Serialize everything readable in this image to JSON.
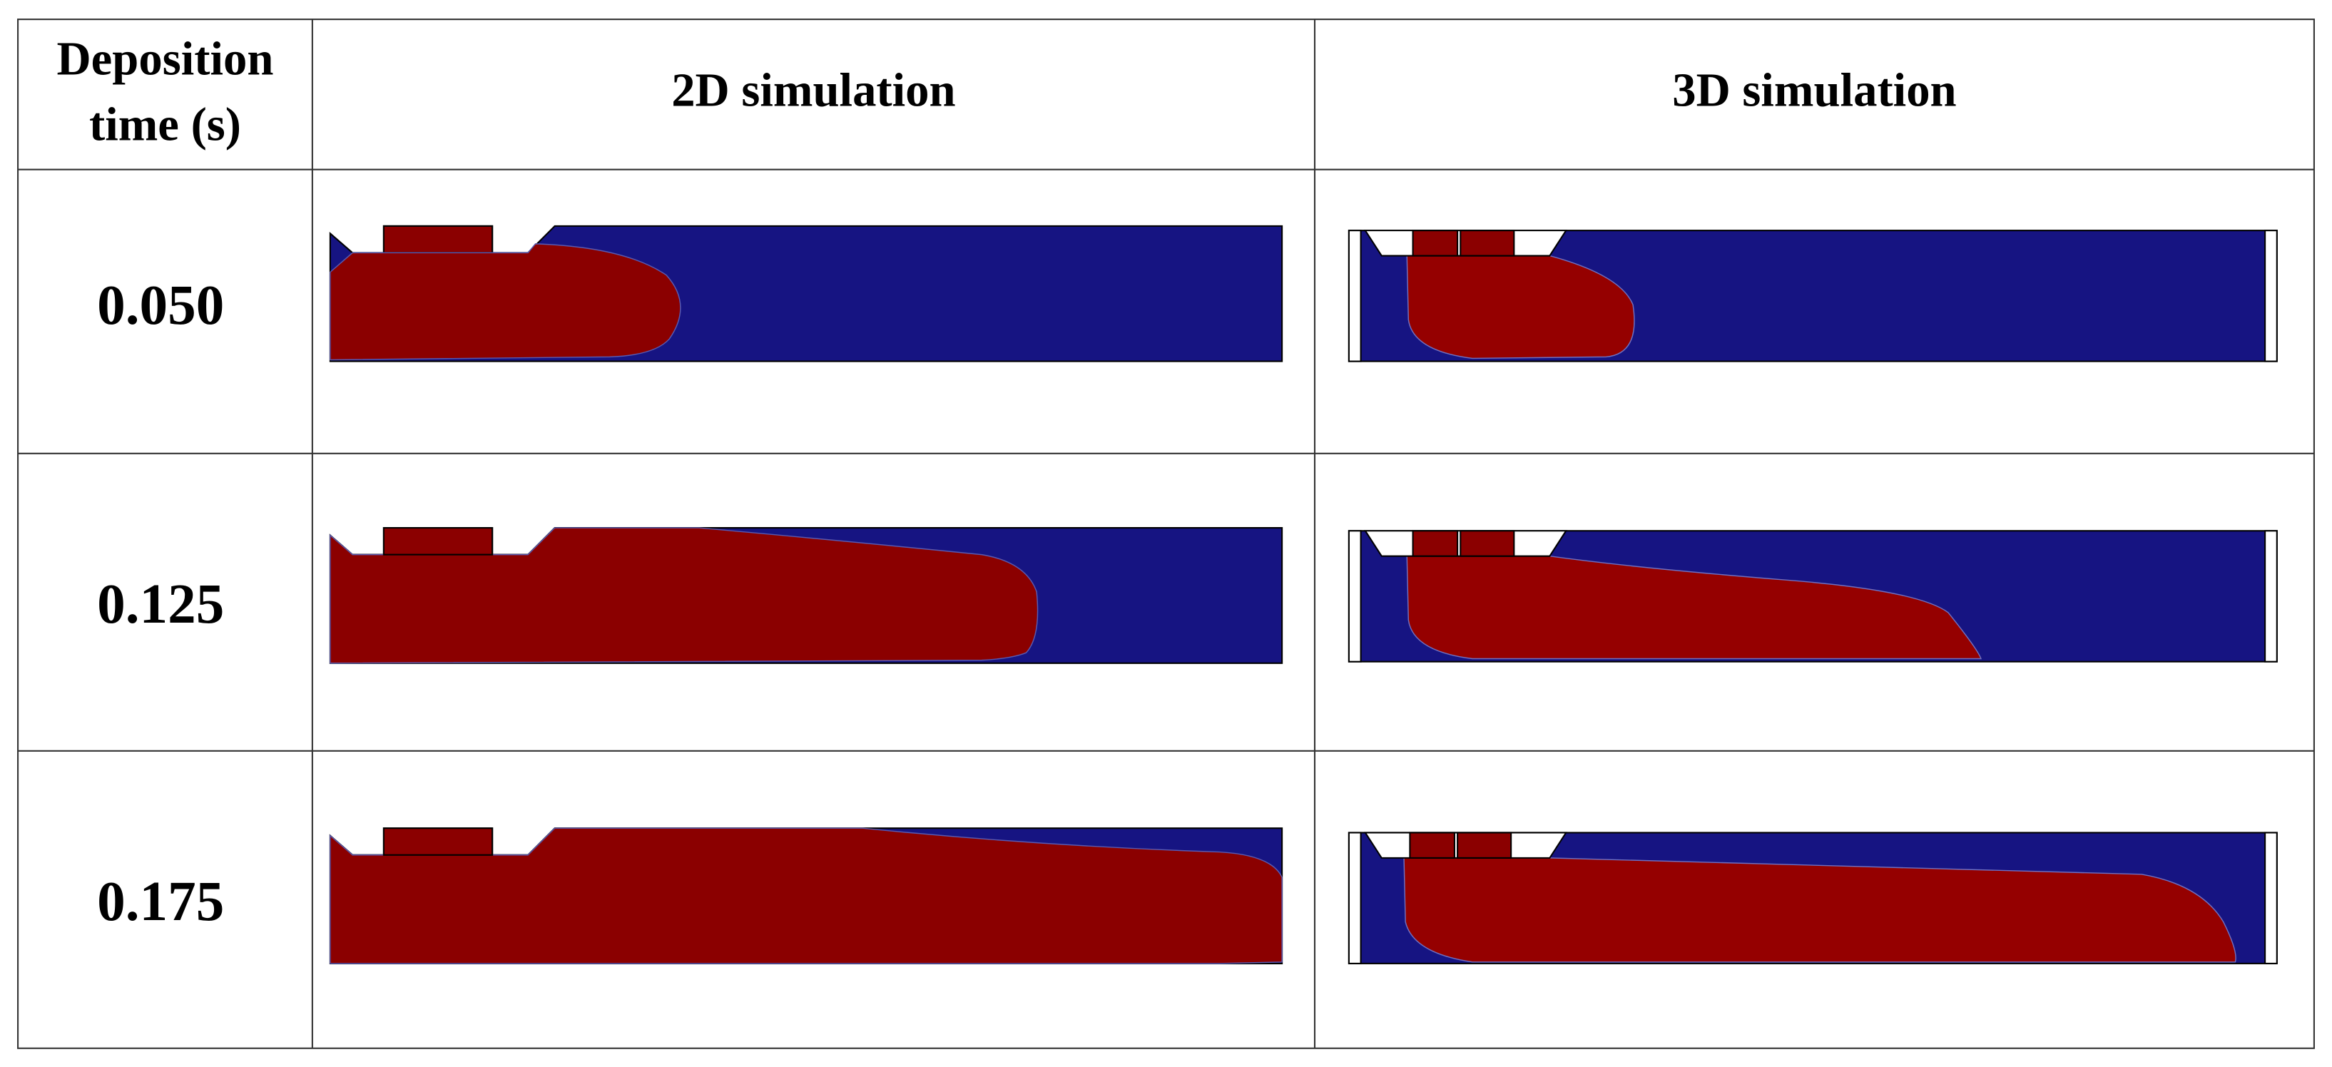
{
  "table": {
    "header": [
      "Deposition time (s)",
      "2D simulation",
      "3D simulation"
    ],
    "rows": [
      [
        "0.050"
      ],
      [
        "0.125"
      ],
      [
        "0.175"
      ]
    ]
  }
}
